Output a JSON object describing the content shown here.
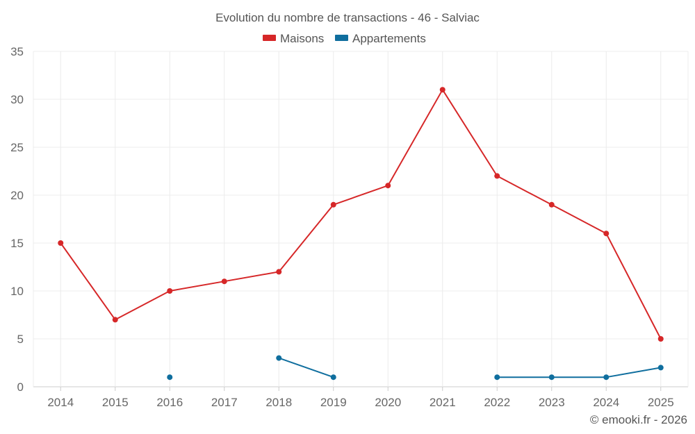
{
  "chart_data": {
    "type": "line",
    "title": "Evolution du nombre de transactions - 46 - Salviac",
    "categories": [
      "2014",
      "2015",
      "2016",
      "2017",
      "2018",
      "2019",
      "2020",
      "2021",
      "2022",
      "2023",
      "2024",
      "2025"
    ],
    "ylim": [
      0,
      35
    ],
    "yticks": [
      0,
      5,
      10,
      15,
      20,
      25,
      30,
      35
    ],
    "ytick_labels": [
      "0",
      "5",
      "10",
      "15",
      "20",
      "25",
      "30",
      "35"
    ],
    "grid": true,
    "legend_position": "top-center",
    "series": [
      {
        "name": "Maisons",
        "color": "#d62728",
        "values": [
          15,
          7,
          10,
          11,
          12,
          19,
          21,
          31,
          22,
          19,
          16,
          5
        ]
      },
      {
        "name": "Appartements",
        "color": "#0f6e9e",
        "values": [
          null,
          null,
          1,
          null,
          3,
          1,
          null,
          null,
          1,
          1,
          1,
          2
        ]
      }
    ],
    "credit": "© emooki.fr - 2026"
  }
}
